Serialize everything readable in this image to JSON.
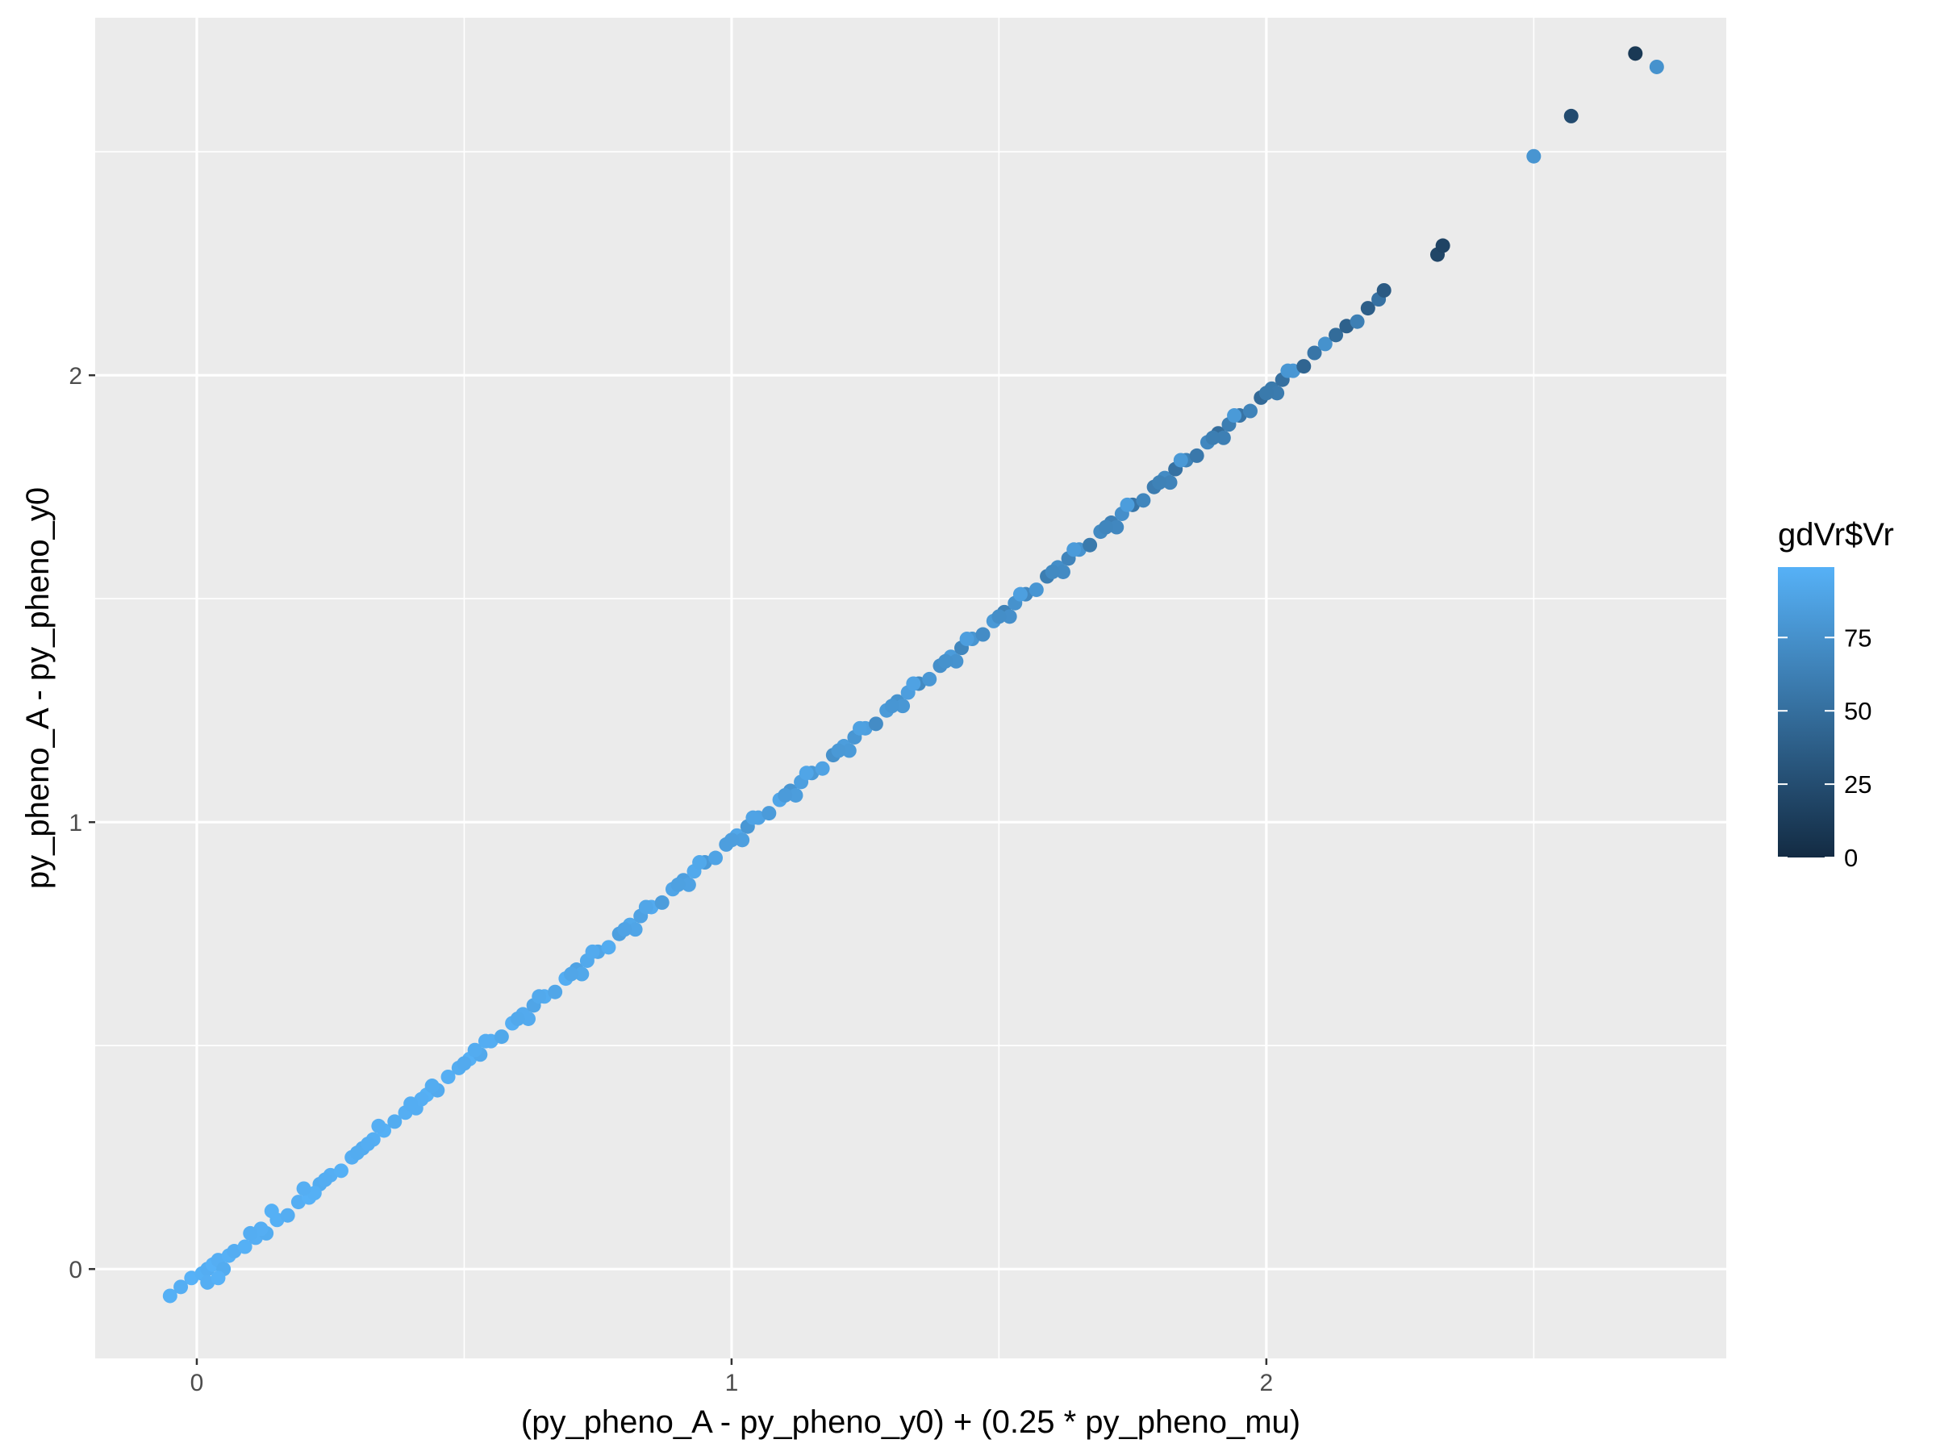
{
  "chart_data": {
    "type": "scatter",
    "xlabel": "(py_pheno_A - py_pheno_y0) + (0.25 * py_pheno_mu)",
    "ylabel": "py_pheno_A - py_pheno_y0",
    "xlim": [
      -0.19,
      2.86
    ],
    "ylim": [
      -0.2,
      2.8
    ],
    "x_major_ticks": [
      0,
      1,
      2
    ],
    "x_minor_ticks": [
      0.5,
      1.5,
      2.5
    ],
    "y_major_ticks": [
      0,
      1,
      2
    ],
    "y_minor_ticks": [
      0.5,
      1.5,
      2.5
    ],
    "x_tick_labels": [
      "0",
      "1",
      "2"
    ],
    "y_tick_labels": [
      "0",
      "1",
      "2"
    ],
    "grid": true,
    "panel_background": "#EBEBEB",
    "point_color_low": "#132B43",
    "point_color_high": "#56B1F7",
    "legend": {
      "title": "gdVr$Vr",
      "position": "right",
      "range": [
        0,
        99
      ],
      "ticks": [
        0,
        25,
        50,
        75
      ],
      "tick_labels": [
        "0",
        "25",
        "50",
        "75"
      ]
    },
    "points": [
      [
        -0.05,
        -0.06,
        98
      ],
      [
        -0.03,
        -0.04,
        97
      ],
      [
        -0.01,
        -0.02,
        99
      ],
      [
        0.01,
        -0.01,
        98
      ],
      [
        0.02,
        0.0,
        96
      ],
      [
        0.03,
        0.01,
        99
      ],
      [
        0.04,
        0.02,
        97
      ],
      [
        0.05,
        0.0,
        95
      ],
      [
        0.06,
        0.03,
        98
      ],
      [
        0.02,
        -0.03,
        97
      ],
      [
        0.04,
        -0.02,
        99
      ],
      [
        0.07,
        0.04,
        96
      ],
      [
        0.09,
        0.05,
        98
      ],
      [
        0.11,
        0.07,
        97
      ],
      [
        0.13,
        0.08,
        95
      ],
      [
        0.15,
        0.11,
        98
      ],
      [
        0.17,
        0.12,
        96
      ],
      [
        0.19,
        0.15,
        97
      ],
      [
        0.21,
        0.16,
        99
      ],
      [
        0.23,
        0.19,
        95
      ],
      [
        0.25,
        0.21,
        97
      ],
      [
        0.27,
        0.22,
        98
      ],
      [
        0.29,
        0.25,
        96
      ],
      [
        0.31,
        0.27,
        94
      ],
      [
        0.33,
        0.29,
        97
      ],
      [
        0.35,
        0.31,
        98
      ],
      [
        0.37,
        0.33,
        95
      ],
      [
        0.39,
        0.35,
        97
      ],
      [
        0.41,
        0.36,
        96
      ],
      [
        0.43,
        0.39,
        98
      ],
      [
        0.45,
        0.4,
        94
      ],
      [
        0.47,
        0.43,
        97
      ],
      [
        0.49,
        0.45,
        95
      ],
      [
        0.51,
        0.47,
        98
      ],
      [
        0.53,
        0.48,
        93
      ],
      [
        0.55,
        0.51,
        96
      ],
      [
        0.57,
        0.52,
        92
      ],
      [
        0.59,
        0.55,
        97
      ],
      [
        0.61,
        0.57,
        94
      ],
      [
        0.63,
        0.59,
        90
      ],
      [
        0.65,
        0.61,
        95
      ],
      [
        0.67,
        0.62,
        91
      ],
      [
        0.69,
        0.65,
        96
      ],
      [
        0.71,
        0.67,
        88
      ],
      [
        0.73,
        0.69,
        93
      ],
      [
        0.75,
        0.71,
        90
      ],
      [
        0.77,
        0.72,
        95
      ],
      [
        0.79,
        0.75,
        86
      ],
      [
        0.81,
        0.77,
        92
      ],
      [
        0.83,
        0.79,
        88
      ],
      [
        0.85,
        0.81,
        94
      ],
      [
        0.87,
        0.82,
        84
      ],
      [
        0.89,
        0.85,
        90
      ],
      [
        0.91,
        0.87,
        86
      ],
      [
        0.93,
        0.89,
        93
      ],
      [
        0.95,
        0.91,
        82
      ],
      [
        0.97,
        0.92,
        89
      ],
      [
        0.99,
        0.95,
        85
      ],
      [
        1.01,
        0.97,
        91
      ],
      [
        1.03,
        0.99,
        80
      ],
      [
        1.05,
        1.01,
        88
      ],
      [
        1.07,
        1.02,
        83
      ],
      [
        1.09,
        1.05,
        90
      ],
      [
        1.11,
        1.07,
        78
      ],
      [
        1.13,
        1.09,
        86
      ],
      [
        1.15,
        1.11,
        81
      ],
      [
        1.17,
        1.12,
        88
      ],
      [
        1.19,
        1.15,
        75
      ],
      [
        1.21,
        1.17,
        84
      ],
      [
        1.23,
        1.19,
        79
      ],
      [
        1.25,
        1.21,
        86
      ],
      [
        1.27,
        1.22,
        72
      ],
      [
        1.29,
        1.25,
        82
      ],
      [
        1.31,
        1.27,
        76
      ],
      [
        1.33,
        1.29,
        85
      ],
      [
        1.35,
        1.31,
        70
      ],
      [
        1.37,
        1.32,
        80
      ],
      [
        1.39,
        1.35,
        74
      ],
      [
        1.41,
        1.37,
        83
      ],
      [
        1.43,
        1.39,
        67
      ],
      [
        1.45,
        1.41,
        78
      ],
      [
        1.47,
        1.42,
        72
      ],
      [
        1.49,
        1.45,
        81
      ],
      [
        1.51,
        1.47,
        64
      ],
      [
        1.53,
        1.49,
        76
      ],
      [
        1.55,
        1.51,
        69
      ],
      [
        1.57,
        1.52,
        79
      ],
      [
        1.59,
        1.55,
        61
      ],
      [
        1.61,
        1.57,
        73
      ],
      [
        1.63,
        1.59,
        66
      ],
      [
        1.65,
        1.61,
        77
      ],
      [
        1.67,
        1.62,
        58
      ],
      [
        1.69,
        1.65,
        70
      ],
      [
        1.71,
        1.67,
        63
      ],
      [
        1.73,
        1.69,
        74
      ],
      [
        1.75,
        1.71,
        55
      ],
      [
        1.77,
        1.72,
        67
      ],
      [
        1.79,
        1.75,
        60
      ],
      [
        1.81,
        1.77,
        71
      ],
      [
        1.83,
        1.79,
        52
      ],
      [
        1.85,
        1.81,
        64
      ],
      [
        1.87,
        1.82,
        57
      ],
      [
        1.89,
        1.85,
        68
      ],
      [
        1.91,
        1.87,
        49
      ],
      [
        1.93,
        1.89,
        61
      ],
      [
        1.95,
        1.91,
        54
      ],
      [
        1.97,
        1.92,
        65
      ],
      [
        1.99,
        1.95,
        46
      ],
      [
        2.01,
        1.97,
        58
      ],
      [
        2.03,
        1.99,
        51
      ],
      [
        2.05,
        2.01,
        80
      ],
      [
        2.07,
        2.02,
        43
      ],
      [
        2.09,
        2.05,
        55
      ],
      [
        2.11,
        2.07,
        76
      ],
      [
        2.13,
        2.09,
        48
      ],
      [
        2.15,
        2.11,
        40
      ],
      [
        2.17,
        2.12,
        62
      ],
      [
        2.19,
        2.15,
        38
      ],
      [
        2.21,
        2.17,
        52
      ],
      [
        2.22,
        2.19,
        35
      ],
      [
        0.12,
        0.09,
        97
      ],
      [
        0.22,
        0.17,
        98
      ],
      [
        0.32,
        0.28,
        96
      ],
      [
        0.42,
        0.38,
        97
      ],
      [
        0.52,
        0.49,
        95
      ],
      [
        0.62,
        0.56,
        94
      ],
      [
        0.72,
        0.66,
        92
      ],
      [
        0.82,
        0.76,
        90
      ],
      [
        0.92,
        0.86,
        88
      ],
      [
        1.02,
        0.96,
        86
      ],
      [
        1.12,
        1.06,
        84
      ],
      [
        1.22,
        1.16,
        82
      ],
      [
        1.32,
        1.26,
        80
      ],
      [
        1.42,
        1.36,
        77
      ],
      [
        1.52,
        1.46,
        74
      ],
      [
        1.62,
        1.56,
        71
      ],
      [
        1.72,
        1.66,
        68
      ],
      [
        1.82,
        1.76,
        65
      ],
      [
        1.92,
        1.86,
        62
      ],
      [
        2.02,
        1.96,
        59
      ],
      [
        0.1,
        0.08,
        96
      ],
      [
        0.2,
        0.18,
        97
      ],
      [
        0.3,
        0.26,
        95
      ],
      [
        0.4,
        0.37,
        96
      ],
      [
        0.5,
        0.46,
        94
      ],
      [
        0.6,
        0.56,
        93
      ],
      [
        0.7,
        0.66,
        91
      ],
      [
        0.8,
        0.76,
        89
      ],
      [
        0.9,
        0.86,
        87
      ],
      [
        1.0,
        0.96,
        85
      ],
      [
        1.1,
        1.06,
        83
      ],
      [
        1.2,
        1.16,
        81
      ],
      [
        1.3,
        1.26,
        79
      ],
      [
        1.4,
        1.36,
        76
      ],
      [
        1.5,
        1.46,
        73
      ],
      [
        1.6,
        1.56,
        70
      ],
      [
        1.7,
        1.66,
        67
      ],
      [
        1.8,
        1.76,
        64
      ],
      [
        1.9,
        1.86,
        61
      ],
      [
        2.0,
        1.96,
        58
      ],
      [
        0.14,
        0.13,
        98
      ],
      [
        0.24,
        0.2,
        96
      ],
      [
        0.34,
        0.32,
        97
      ],
      [
        0.44,
        0.41,
        95
      ],
      [
        0.54,
        0.51,
        96
      ],
      [
        0.64,
        0.61,
        93
      ],
      [
        0.74,
        0.71,
        94
      ],
      [
        0.84,
        0.81,
        91
      ],
      [
        0.94,
        0.91,
        92
      ],
      [
        1.04,
        1.01,
        89
      ],
      [
        1.14,
        1.11,
        90
      ],
      [
        1.24,
        1.21,
        87
      ],
      [
        1.34,
        1.31,
        88
      ],
      [
        1.44,
        1.41,
        85
      ],
      [
        1.54,
        1.51,
        86
      ],
      [
        1.64,
        1.61,
        83
      ],
      [
        1.74,
        1.71,
        84
      ],
      [
        1.84,
        1.81,
        81
      ],
      [
        1.94,
        1.91,
        82
      ],
      [
        2.04,
        2.01,
        79
      ],
      [
        2.32,
        2.27,
        20
      ],
      [
        2.33,
        2.29,
        18
      ],
      [
        2.5,
        2.49,
        78
      ],
      [
        2.57,
        2.58,
        24
      ],
      [
        2.69,
        2.72,
        10
      ],
      [
        2.73,
        2.69,
        76
      ]
    ]
  }
}
